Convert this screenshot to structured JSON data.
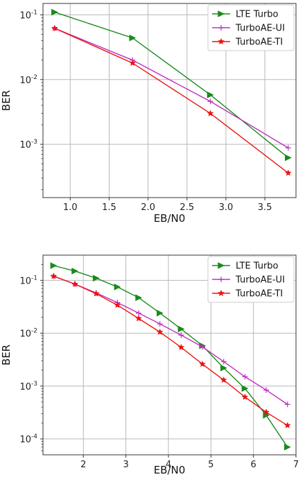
{
  "chart_data": [
    {
      "type": "line",
      "xlabel": "EB/N0",
      "ylabel": "BER",
      "yscale": "log",
      "xlim": [
        0.65,
        3.9
      ],
      "ylim": [
        0.00015,
        0.15
      ],
      "xticks": [
        1.0,
        1.5,
        2.0,
        2.5,
        3.0,
        3.5
      ],
      "xtick_labels": [
        "1.0",
        "1.5",
        "2.0",
        "2.5",
        "3.0",
        "3.5"
      ],
      "yticks": [
        0.1,
        0.01,
        0.001
      ],
      "ytick_labels": [
        "10^-1",
        "10^-2",
        "10^-3"
      ],
      "grid": true,
      "legend_position": "top-right",
      "series": [
        {
          "name": "LTE Turbo",
          "color": "#1a8a1a",
          "marker": "triangle-right",
          "x": [
            0.8,
            1.8,
            2.8,
            3.8
          ],
          "y": [
            0.11,
            0.044,
            0.0058,
            0.00062
          ]
        },
        {
          "name": "TurboAE-UI",
          "color": "#bf30bf",
          "marker": "plus",
          "x": [
            0.8,
            1.8,
            2.8,
            3.8
          ],
          "y": [
            0.062,
            0.02,
            0.0046,
            0.00088
          ]
        },
        {
          "name": "TurboAE-TI",
          "color": "#ee1111",
          "marker": "star",
          "x": [
            0.8,
            1.8,
            2.8,
            3.8
          ],
          "y": [
            0.062,
            0.018,
            0.003,
            0.00036
          ]
        }
      ]
    },
    {
      "type": "line",
      "xlabel": "EB/N0",
      "ylabel": "BER",
      "yscale": "log",
      "xlim": [
        1.05,
        7.0
      ],
      "ylim": [
        5e-05,
        0.3
      ],
      "xticks": [
        2,
        3,
        4,
        5,
        6,
        7
      ],
      "xtick_labels": [
        "2",
        "3",
        "4",
        "5",
        "6",
        "7"
      ],
      "yticks": [
        0.1,
        0.01,
        0.001,
        0.0001
      ],
      "ytick_labels": [
        "10^-1",
        "10^-2",
        "10^-3",
        "10^-4"
      ],
      "grid": true,
      "legend_position": "top-right",
      "series": [
        {
          "name": "LTE Turbo",
          "color": "#1a8a1a",
          "marker": "triangle-right",
          "x": [
            1.3,
            1.8,
            2.3,
            2.8,
            3.3,
            3.8,
            4.3,
            4.8,
            5.3,
            5.8,
            6.3,
            6.8
          ],
          "y": [
            0.19,
            0.15,
            0.11,
            0.075,
            0.047,
            0.024,
            0.012,
            0.0058,
            0.0022,
            0.0009,
            0.00028,
            7e-05
          ]
        },
        {
          "name": "TurboAE-UI",
          "color": "#bf30bf",
          "marker": "plus",
          "x": [
            1.3,
            1.8,
            2.3,
            2.8,
            3.3,
            3.8,
            4.3,
            4.8,
            5.3,
            5.8,
            6.3,
            6.8
          ],
          "y": [
            0.12,
            0.085,
            0.058,
            0.038,
            0.024,
            0.015,
            0.0092,
            0.0055,
            0.0029,
            0.0015,
            0.00084,
            0.00045
          ]
        },
        {
          "name": "TurboAE-TI",
          "color": "#ee1111",
          "marker": "star",
          "x": [
            1.3,
            1.8,
            2.3,
            2.8,
            3.3,
            3.8,
            4.3,
            4.8,
            5.3,
            5.8,
            6.3,
            6.8
          ],
          "y": [
            0.12,
            0.085,
            0.056,
            0.034,
            0.019,
            0.0105,
            0.0054,
            0.0026,
            0.0013,
            0.00062,
            0.00032,
            0.00018
          ]
        }
      ]
    }
  ]
}
